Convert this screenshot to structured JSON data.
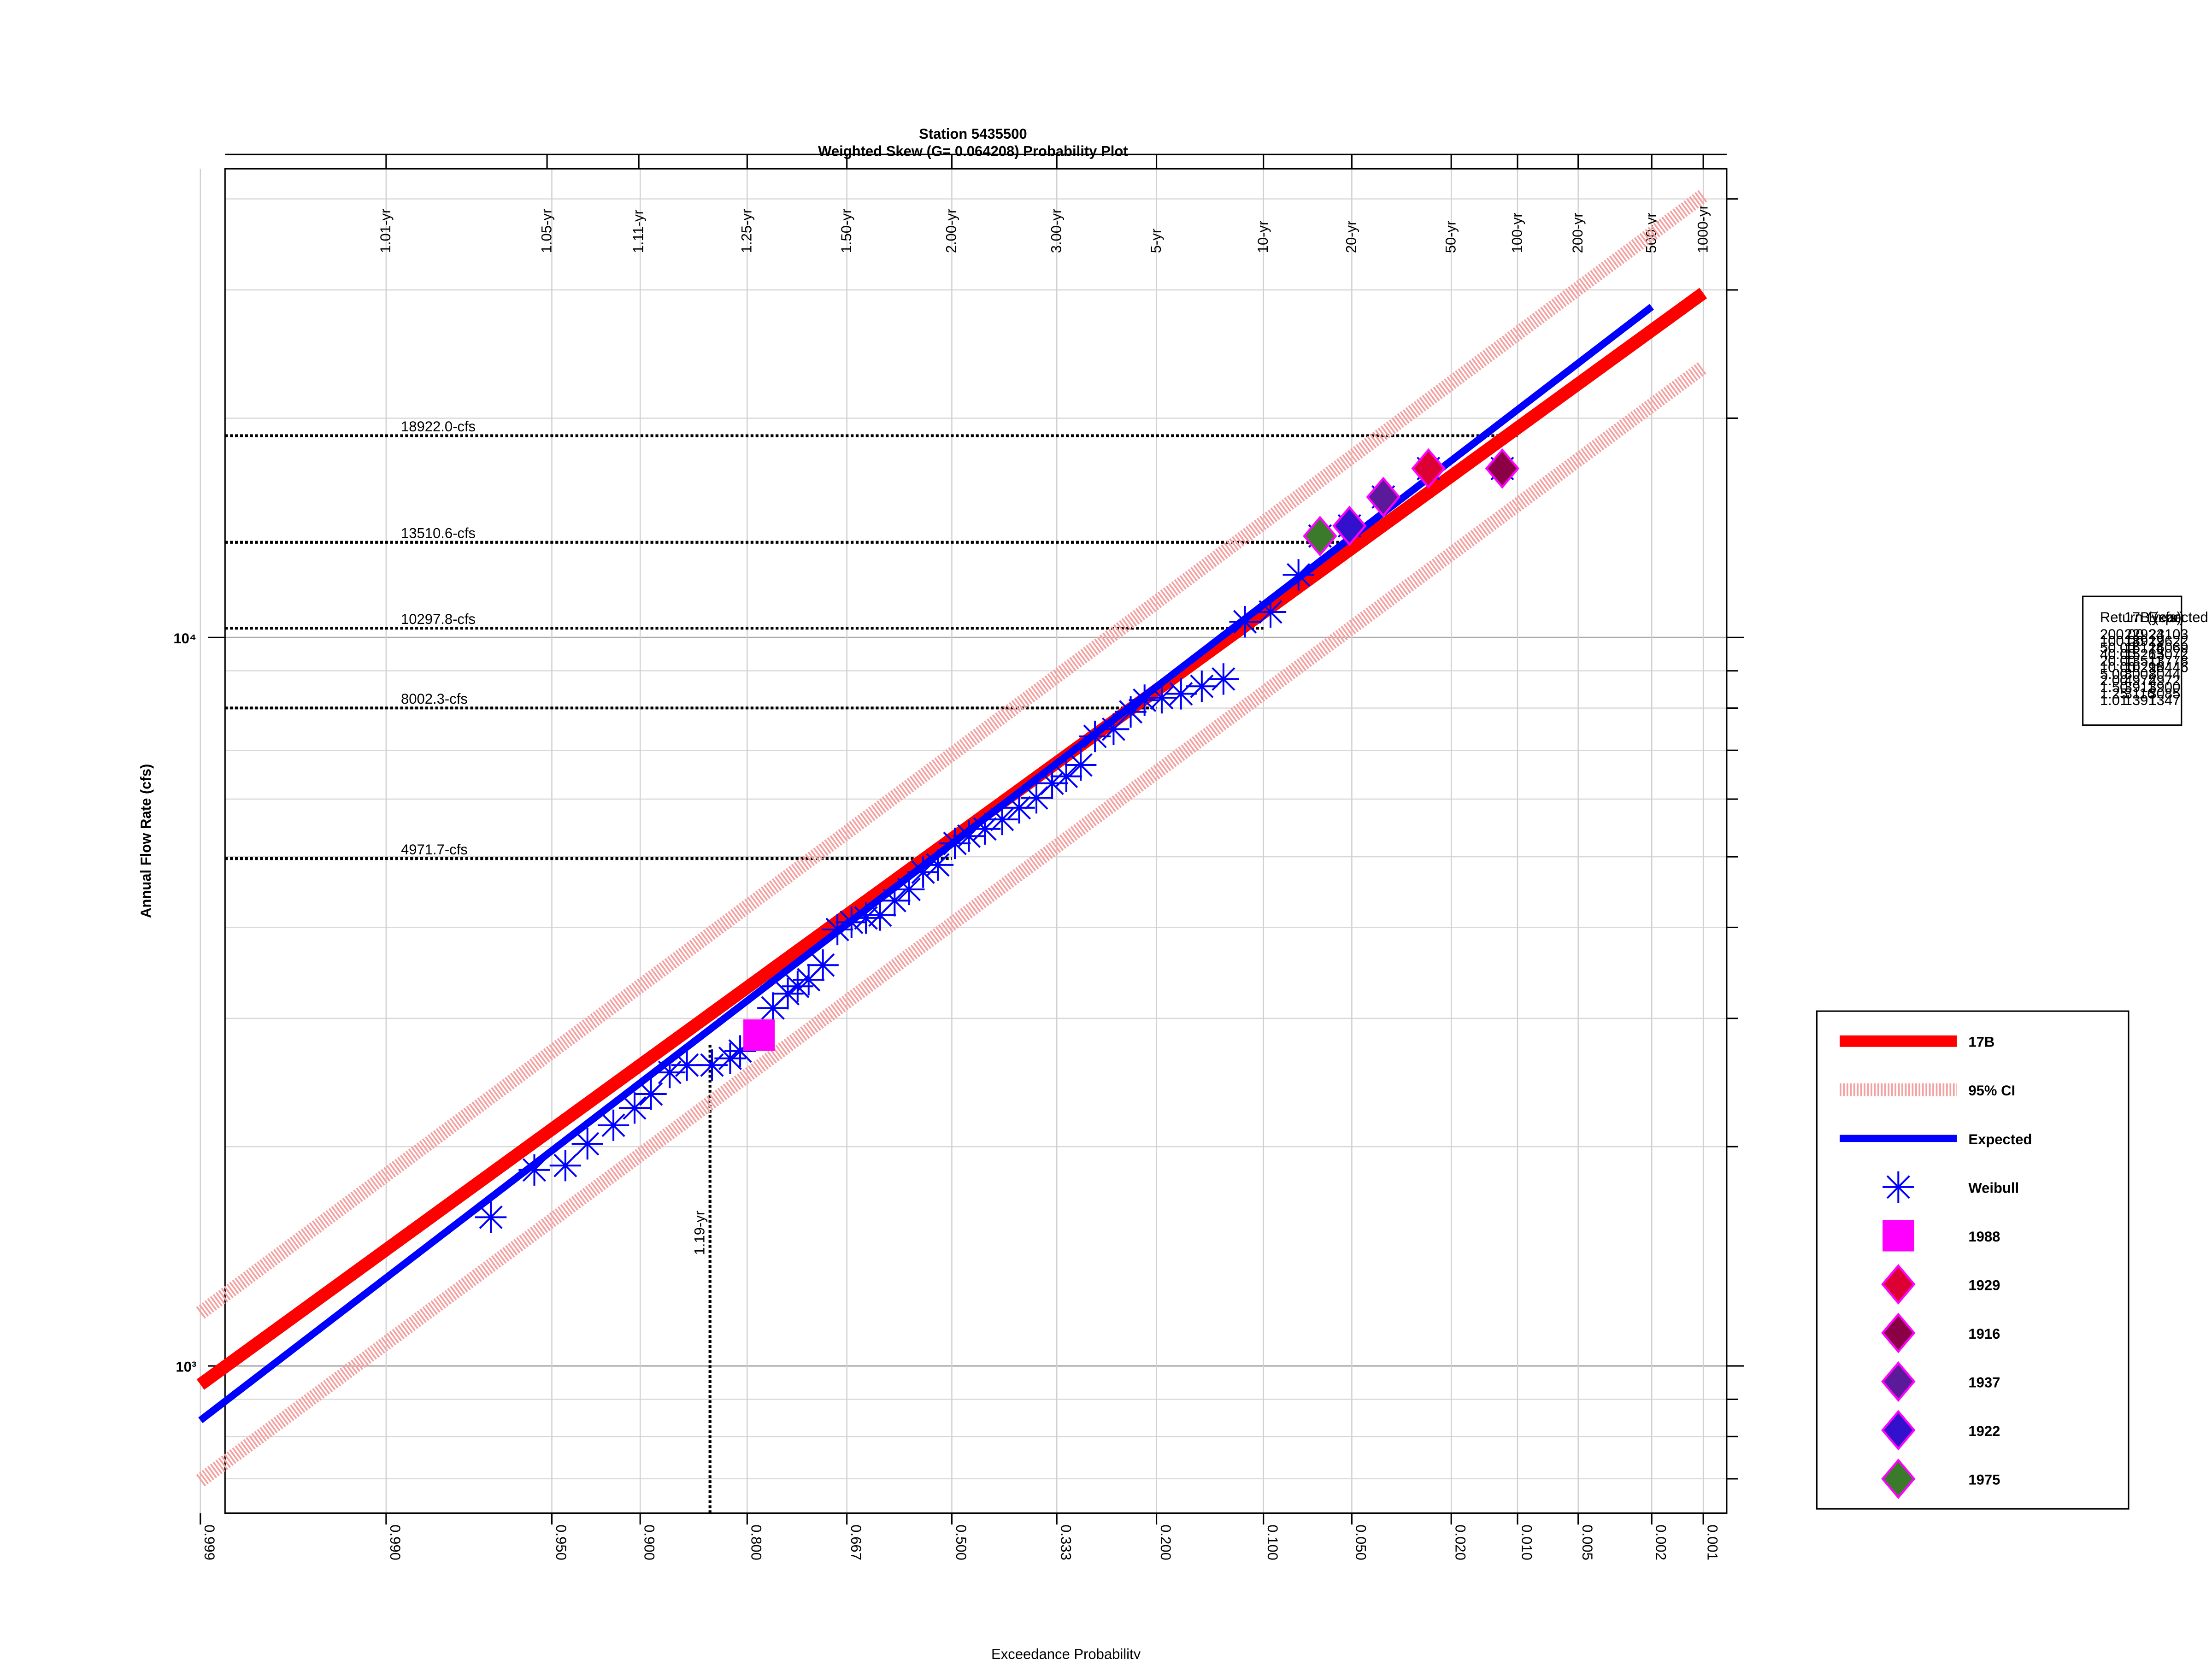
{
  "chart_data": {
    "type": "line",
    "title": "Station 5435500",
    "subtitle": "Weighted Skew (G= 0.064208) Probability Plot",
    "x_label": "Exceedance Probability",
    "y_label": "Annual Flow Rate (cfs)",
    "xscale": "probit",
    "yscale": "log",
    "grid": true,
    "legend": "right",
    "xlim": [
      0.9986,
      0.00072
    ],
    "ylim": [
      628,
      44000
    ],
    "xticks": [
      0.999,
      {
        "value": 0.99,
        "label": "0.990"
      },
      {
        "value": 0.95,
        "label": "0.950"
      },
      {
        "value": 0.9,
        "label": "0.900"
      },
      {
        "value": 0.8,
        "label": "0.800"
      },
      0.667,
      {
        "value": 0.5,
        "label": "0.500"
      },
      0.333,
      {
        "value": 0.2,
        "label": "0.200"
      },
      {
        "value": 0.1,
        "label": "0.100"
      },
      {
        "value": 0.05,
        "label": "0.050"
      },
      {
        "value": 0.02,
        "label": "0.020"
      },
      {
        "value": 0.01,
        "label": "0.010"
      },
      0.005,
      0.002,
      0.001
    ],
    "x2ticks": [
      {
        "value": 0.99,
        "label": "1.01-yr"
      },
      {
        "value": 0.952,
        "label": "1.05-yr"
      },
      {
        "value": 0.901,
        "label": "1.11-yr"
      },
      {
        "value": 0.8,
        "label": "1.25-yr"
      },
      {
        "value": 0.667,
        "label": "1.50-yr"
      },
      {
        "value": 0.5,
        "label": "2.00-yr"
      },
      {
        "value": 0.333,
        "label": "3.00-yr"
      },
      {
        "value": 0.2,
        "label": "5-yr"
      },
      {
        "value": 0.1,
        "label": "10-yr"
      },
      {
        "value": 0.05,
        "label": "20-yr"
      },
      {
        "value": 0.02,
        "label": "50-yr"
      },
      {
        "value": 0.01,
        "label": "100-yr"
      },
      {
        "value": 0.005,
        "label": "200-yr"
      },
      {
        "value": 0.002,
        "label": "500-yr"
      },
      {
        "value": 0.001,
        "label": "1000-yr"
      }
    ],
    "yticks": [
      {
        "value": 1000,
        "label": "10³"
      },
      {
        "value": 10000,
        "label": "10⁴"
      }
    ],
    "yminor": [
      700,
      800,
      900,
      2000,
      3000,
      4000,
      5000,
      6000,
      7000,
      8000,
      9000,
      20000,
      30000,
      40000
    ],
    "ref_lines": [
      {
        "value": 18922.0,
        "label": "18922.0-cfs",
        "x": 0.01
      },
      {
        "value": 13510.6,
        "label": "13510.6-cfs",
        "x": 0.05
      },
      {
        "value": 10297.8,
        "label": "10297.8-cfs",
        "x": 0.1
      },
      {
        "value": 8002.3,
        "label": "8002.3-cfs",
        "x": 0.2
      },
      {
        "value": 4971.7,
        "label": "4971.7-cfs",
        "x": 0.5
      }
    ],
    "vline": {
      "x": 0.84,
      "value": 2770,
      "label": "1.19-yr"
    },
    "series": [
      {
        "name": "17B",
        "marker": "line",
        "color": "#ff0000",
        "x": [
          0.999,
          0.001
        ],
        "values": [
          943,
          29700
        ]
      },
      {
        "name": "95% CI",
        "marker": "band",
        "color": "#f4a0a0",
        "x": [
          0.999,
          0.001
        ],
        "values": [
          1182,
          40440
        ],
        "lower": [
          696,
          23500
        ]
      },
      {
        "name": "Expected",
        "marker": "line",
        "color": "#0000ff",
        "x": [
          0.999,
          0.002
        ],
        "values": [
          842,
          28450
        ]
      },
      {
        "name": "Weibull",
        "marker": "asterisk",
        "color": "#0000ff",
        "x": [
          0.971,
          0.957,
          0.944,
          0.933,
          0.918,
          0.904,
          0.892,
          0.877,
          0.862,
          0.838,
          0.819,
          0.808,
          0.769,
          0.75,
          0.737,
          0.722,
          0.702,
          0.681,
          0.66,
          0.638,
          0.616,
          0.593,
          0.57,
          0.547,
          0.523,
          0.495,
          0.472,
          0.446,
          0.418,
          0.391,
          0.364,
          0.34,
          0.319,
          0.298,
          0.278,
          0.253,
          0.231,
          0.214,
          0.194,
          0.173,
          0.152,
          0.132,
          0.114,
          0.095,
          0.077,
          0.065,
          0.051,
          0.038,
          0.025,
          0.0118
        ],
        "values": [
          1600,
          1858,
          1884,
          2018,
          2140,
          2260,
          2362,
          2529,
          2588,
          2588,
          2644,
          2706,
          3100,
          3244,
          3320,
          3390,
          3550,
          3973,
          4065,
          4121,
          4159,
          4353,
          4510,
          4763,
          4873,
          5216,
          5337,
          5460,
          5627,
          5838,
          6024,
          6308,
          6447,
          6683,
          7315,
          7484,
          7905,
          8202,
          8265,
          8370,
          8570,
          8770,
          10510,
          10840,
          12190,
          13780,
          14230,
          15590,
          17060,
          17060
        ]
      },
      {
        "name": "1988",
        "marker": "square",
        "color": "#ff00ff",
        "x": [
          0.786
        ],
        "values": [
          2845
        ]
      },
      {
        "name": "1929",
        "marker": "diamond",
        "color": "#dd0033",
        "x": [
          0.025
        ],
        "values": [
          17060
        ]
      },
      {
        "name": "1916",
        "marker": "diamond",
        "color": "#8b0045",
        "x": [
          0.0118
        ],
        "values": [
          17060
        ]
      },
      {
        "name": "1937",
        "marker": "diamond",
        "color": "#5a1a9a",
        "x": [
          0.038
        ],
        "values": [
          15590
        ]
      },
      {
        "name": "1922",
        "marker": "diamond",
        "color": "#3311cc",
        "x": [
          0.051
        ],
        "values": [
          14230
        ]
      },
      {
        "name": "1975",
        "marker": "diamond",
        "color": "#3a7a2a",
        "x": [
          0.065
        ],
        "values": [
          13780
        ]
      }
    ]
  },
  "stats_table": {
    "header": [
      "Return (year)",
      "17B (cfs)",
      "Expected (cfs)"
    ],
    "rows": [
      [
        "200.00",
        "22924",
        "23103"
      ],
      [
        "100.00",
        "18922",
        "19622"
      ],
      [
        "50.00",
        "16124",
        "16069"
      ],
      [
        "40.00",
        "15263",
        "15072"
      ],
      [
        "20.00",
        "13511",
        "13778"
      ],
      [
        "10.00",
        "10298",
        "10446"
      ],
      [
        "5.00",
        "8002",
        "8044"
      ],
      [
        "2.00",
        "4972",
        "4972"
      ],
      [
        "1.50",
        "3911",
        "3900"
      ],
      [
        "1.25",
        "3116",
        "3085"
      ],
      [
        "1.01",
        "1391",
        "1347"
      ]
    ]
  }
}
